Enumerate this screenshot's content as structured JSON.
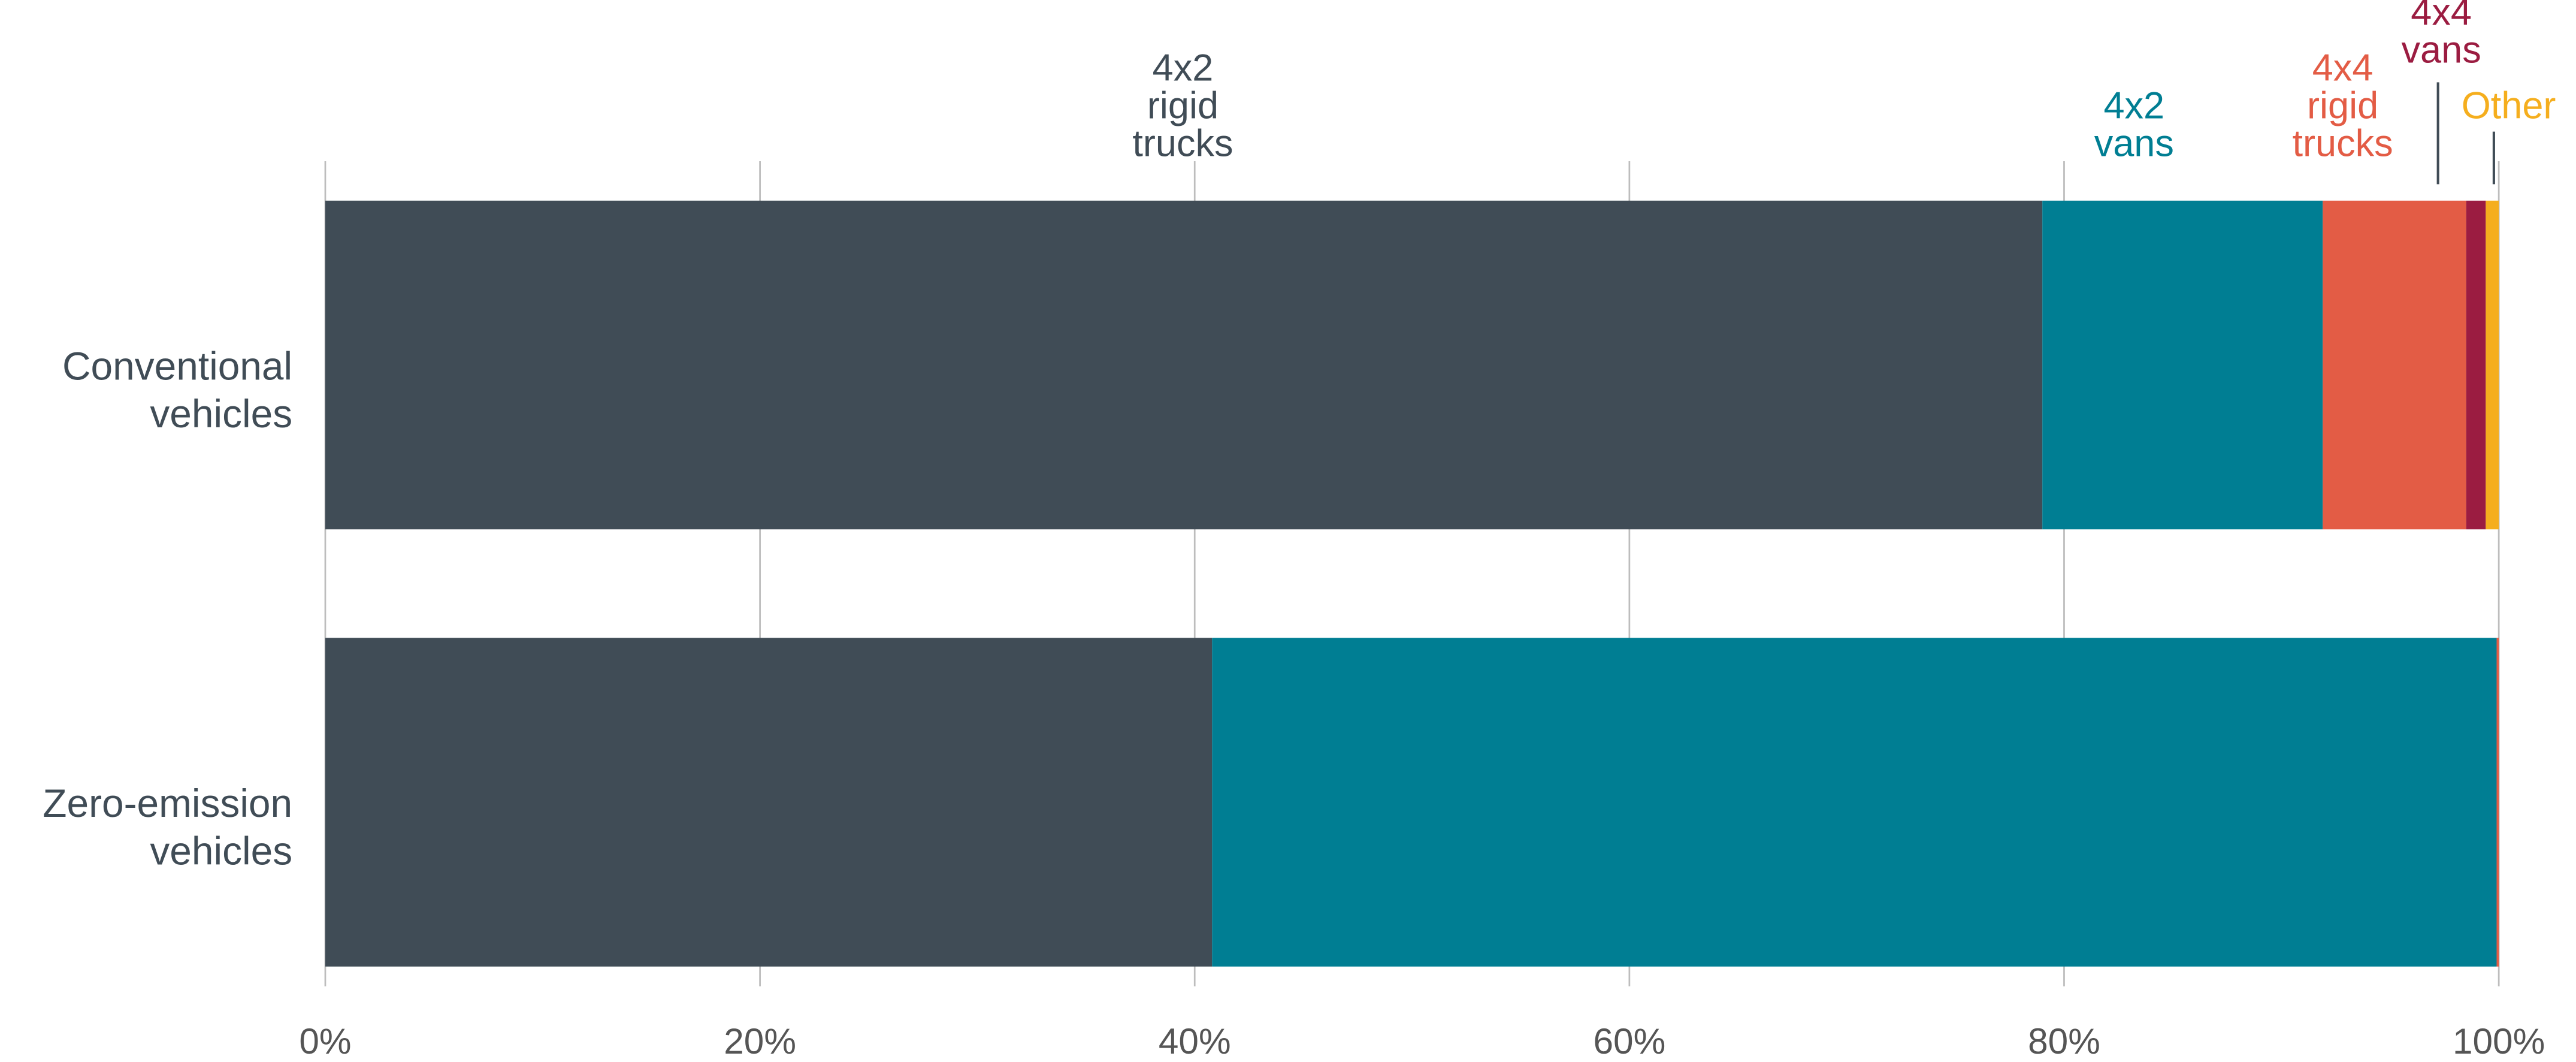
{
  "chart_data": {
    "type": "stacked-bar-horizontal",
    "categories": [
      "Conventional vehicles",
      "Zero-emission vehicles"
    ],
    "series": [
      {
        "name": "4x2 rigid trucks",
        "color": "#404c56",
        "values": [
          79.0,
          40.8
        ]
      },
      {
        "name": "4x2 vans",
        "color": "#007e93",
        "values": [
          12.9,
          59.1
        ]
      },
      {
        "name": "4x4 rigid trucks",
        "color": "#e35c45",
        "values": [
          6.6,
          0.1
        ]
      },
      {
        "name": "4x4 vans",
        "color": "#9b1c41",
        "values": [
          0.9,
          0
        ]
      },
      {
        "name": "Other",
        "color": "#f5ae1e",
        "values": [
          0.6,
          0
        ]
      }
    ],
    "xlim": [
      0,
      100
    ],
    "xticks": [
      {
        "value": 0,
        "label": "0%"
      },
      {
        "value": 20,
        "label": "20%"
      },
      {
        "value": 40,
        "label": "40%"
      },
      {
        "value": 60,
        "label": "60%"
      },
      {
        "value": 80,
        "label": "80%"
      },
      {
        "value": 100,
        "label": "100%"
      }
    ],
    "grid": true
  }
}
